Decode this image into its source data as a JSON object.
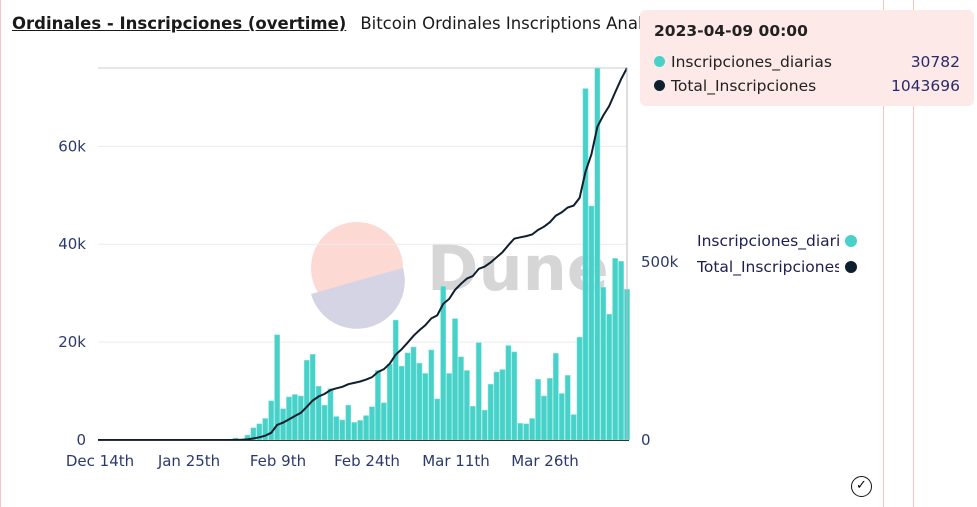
{
  "header": {
    "title": "Ordinales - Inscripciones (overtime)",
    "subtitle": "Bitcoin Ordinales Inscriptions Analys"
  },
  "watermark": "Dune",
  "tooltip": {
    "date": "2023-04-09 00:00",
    "rows": [
      {
        "label": "Inscripciones_diarias",
        "value": "30782",
        "color": "#48d1c8"
      },
      {
        "label": "Total_Inscripciones",
        "value": "1043696",
        "color": "#0f1f2e"
      }
    ]
  },
  "legend": [
    {
      "label": "Inscripciones_diarias",
      "color": "#48d1c8"
    },
    {
      "label": "Total_Inscripciones",
      "color": "#0f1f2e"
    }
  ],
  "chart_data": {
    "type": "bar+line",
    "x_ticks": [
      "Dec 14th",
      "Jan 25th",
      "Feb 9th",
      "Feb 24th",
      "Mar 11th",
      "Mar 26th"
    ],
    "y_left": {
      "ticks": [
        "0",
        "20k",
        "40k",
        "60k"
      ],
      "range": [
        0,
        76000
      ]
    },
    "y_right": {
      "ticks": [
        "0",
        "500k"
      ],
      "range": [
        0,
        1043696
      ]
    },
    "grid": true,
    "legend_position": "right",
    "start_date": "2023-02-02",
    "end_date": "2023-04-09",
    "series": [
      {
        "name": "Inscripciones_diarias",
        "type": "bar",
        "axis": "left",
        "color": "#48d1c8",
        "values": [
          400,
          200,
          1000,
          2500,
          3300,
          4400,
          8000,
          21500,
          6400,
          8800,
          9300,
          9000,
          16300,
          17500,
          11000,
          7100,
          10500,
          4800,
          4100,
          7100,
          3600,
          4000,
          5000,
          6800,
          14200,
          7600,
          15500,
          24500,
          15100,
          17800,
          19000,
          15700,
          13600,
          18400,
          8400,
          31400,
          13600,
          24800,
          17000,
          14200,
          6900,
          19900,
          6100,
          11400,
          13900,
          14400,
          19300,
          18000,
          3400,
          3300,
          4400,
          12400,
          9000,
          12600,
          17700,
          9500,
          13200,
          5200,
          21000,
          71800,
          47800,
          76000,
          31200,
          25700,
          37100,
          36500,
          30782
        ]
      },
      {
        "name": "Total_Inscripciones",
        "type": "line",
        "axis": "right",
        "color": "#0f1f2e",
        "final_value": 1043696
      }
    ]
  }
}
